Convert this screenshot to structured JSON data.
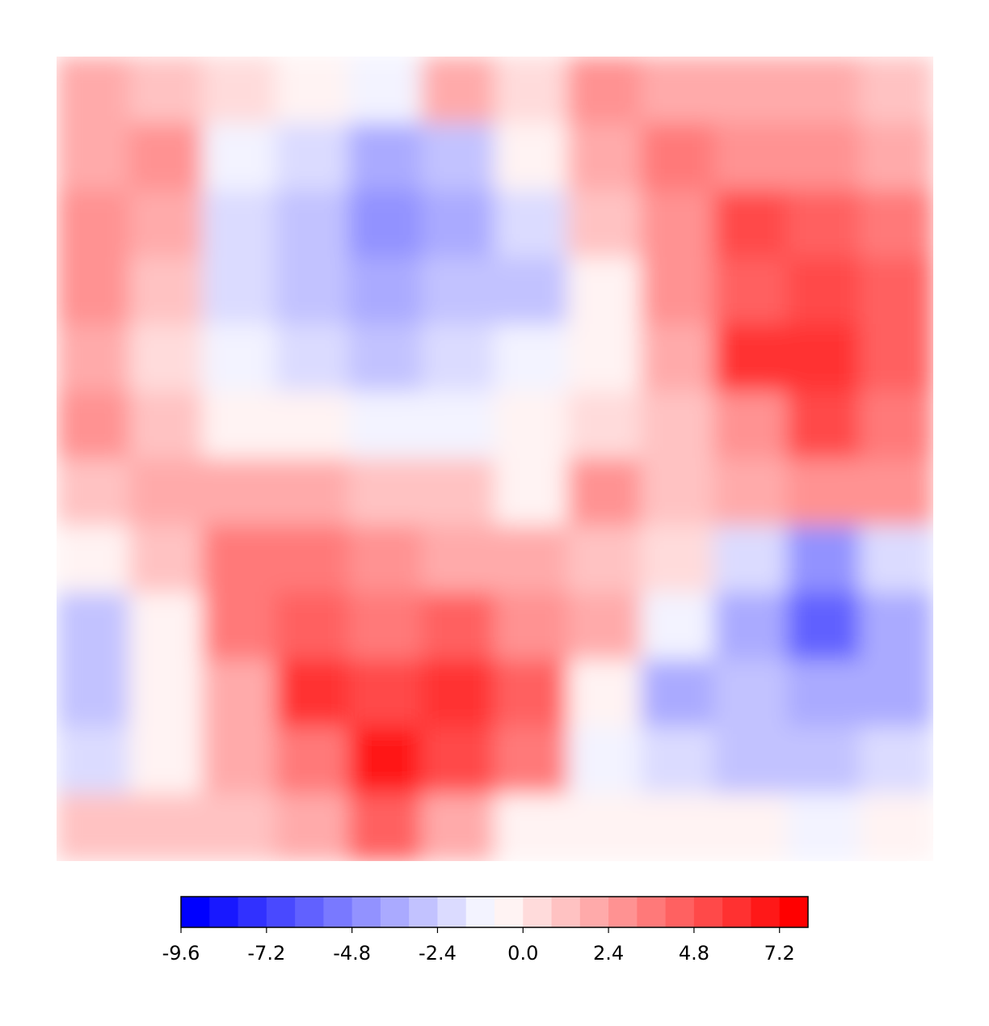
{
  "chart_data": {
    "type": "contour",
    "colormap": "bwr",
    "levels": [
      -9.6,
      -8.8,
      -8.0,
      -7.2,
      -6.4,
      -5.6,
      -4.8,
      -4.0,
      -3.2,
      -2.4,
      -1.6,
      -0.8,
      0.0,
      0.8,
      1.6,
      2.4,
      3.2,
      4.0,
      4.8,
      5.6,
      6.4,
      7.2,
      8.0
    ],
    "z": [
      [
        1.6,
        0.8,
        0,
        -0.8,
        -1.6,
        1.6,
        0,
        2.4,
        1.6,
        1.6,
        1.6,
        0.8
      ],
      [
        1.6,
        2.4,
        -1.6,
        -2.4,
        -4.0,
        -3.2,
        -0.8,
        1.6,
        3.2,
        2.4,
        2.4,
        1.6
      ],
      [
        2.4,
        1.6,
        -2.4,
        -3.2,
        -4.8,
        -4.0,
        -2.4,
        0.8,
        2.4,
        4.8,
        4.0,
        3.2
      ],
      [
        2.4,
        0.8,
        -2.4,
        -3.2,
        -4.0,
        -3.2,
        -3.2,
        -0.8,
        2.4,
        4.0,
        4.8,
        4.0
      ],
      [
        1.6,
        0,
        -1.6,
        -2.4,
        -3.2,
        -2.4,
        -1.6,
        -0.8,
        1.6,
        5.6,
        5.6,
        4.0
      ],
      [
        2.4,
        0.8,
        -0.8,
        -0.8,
        -1.6,
        -1.6,
        -0.8,
        0,
        0.8,
        2.4,
        4.8,
        3.2
      ],
      [
        0.8,
        1.6,
        1.6,
        1.6,
        0.8,
        0.8,
        -0.8,
        2.4,
        0.8,
        1.6,
        2.4,
        2.4
      ],
      [
        -0.8,
        0.8,
        3.2,
        3.2,
        2.4,
        1.6,
        1.6,
        0.8,
        0,
        -2.4,
        -4.8,
        -2.4
      ],
      [
        -3.2,
        -0.8,
        3.2,
        4.0,
        3.2,
        4.0,
        2.4,
        1.6,
        -1.6,
        -4.0,
        -6.4,
        -4.0
      ],
      [
        -3.2,
        -0.8,
        1.6,
        5.6,
        4.8,
        5.6,
        4.0,
        -0.8,
        -4.0,
        -3.2,
        -4.0,
        -4.0
      ],
      [
        -2.4,
        -0.8,
        1.6,
        3.2,
        6.4,
        4.8,
        3.2,
        -1.6,
        -2.4,
        -3.2,
        -3.2,
        -2.4
      ],
      [
        0.8,
        0.8,
        0.8,
        1.6,
        4.0,
        1.6,
        -0.8,
        -0.8,
        -0.8,
        -0.8,
        -1.6,
        -0.8
      ]
    ],
    "colorbar_ticks": [
      -9.6,
      -7.2,
      -4.8,
      -2.4,
      {
        "value": 0,
        "label": "0.0"
      },
      2.4,
      4.8,
      7.2
    ]
  }
}
